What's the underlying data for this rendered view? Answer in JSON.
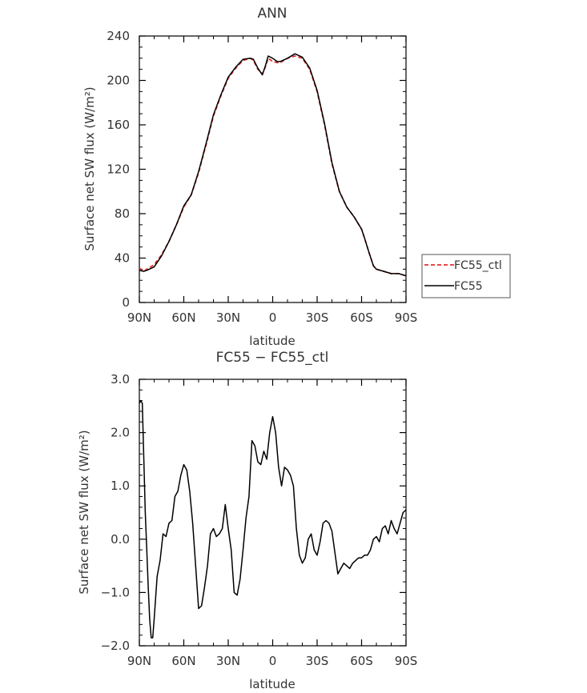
{
  "chart_data": [
    {
      "type": "line",
      "title": "ANN",
      "xlabel": "latitude",
      "ylabel": "Surface net SW flux (W/m²)",
      "x_ticks": [
        "90N",
        "60N",
        "30N",
        "0",
        "30S",
        "60S",
        "90S"
      ],
      "x_range": [
        90,
        -90
      ],
      "y_ticks": [
        "0",
        "40",
        "80",
        "120",
        "160",
        "200",
        "240"
      ],
      "ylim": [
        0,
        240
      ],
      "legend_position": "right",
      "series": [
        {
          "name": "FC55_ctl",
          "color": "#e03030",
          "style": "dashed",
          "x": [
            90,
            87,
            85,
            80,
            75,
            70,
            65,
            60,
            55,
            50,
            45,
            40,
            35,
            30,
            25,
            20,
            15,
            13,
            10,
            7,
            5,
            3,
            0,
            -3,
            -5,
            -10,
            -15,
            -20,
            -25,
            -30,
            -35,
            -40,
            -45,
            -50,
            -55,
            -60,
            -62,
            -65,
            -68,
            -70,
            -75,
            -80,
            -85,
            -90
          ],
          "values": [
            31,
            28,
            30,
            34,
            43,
            55,
            70,
            86,
            97,
            117,
            142,
            168,
            186,
            202,
            211,
            218,
            220,
            218,
            210,
            206,
            212,
            220,
            217,
            216,
            216,
            220,
            222,
            220,
            210,
            190,
            160,
            125,
            100,
            86,
            77,
            66,
            58,
            45,
            33,
            30,
            28,
            26,
            26,
            24
          ]
        },
        {
          "name": "FC55",
          "color": "#000000",
          "style": "solid",
          "x": [
            90,
            87,
            85,
            80,
            75,
            70,
            65,
            60,
            55,
            50,
            45,
            40,
            35,
            30,
            25,
            20,
            15,
            13,
            10,
            7,
            5,
            3,
            0,
            -3,
            -5,
            -10,
            -15,
            -20,
            -25,
            -30,
            -35,
            -40,
            -45,
            -50,
            -55,
            -60,
            -62,
            -65,
            -68,
            -70,
            -75,
            -80,
            -85,
            -90
          ],
          "values": [
            29,
            28,
            29,
            32,
            42,
            55,
            70,
            87,
            97,
            118,
            143,
            169,
            187,
            203,
            212,
            219,
            220,
            219,
            211,
            205,
            213,
            222,
            220,
            217,
            217,
            220,
            224,
            221,
            211,
            191,
            161,
            126,
            100,
            86,
            77,
            66,
            58,
            45,
            33,
            30,
            28,
            26,
            26,
            24
          ]
        }
      ]
    },
    {
      "type": "line",
      "title": "FC55 − FC55_ctl",
      "xlabel": "latitude",
      "ylabel": "Surface net SW flux (W/m²)",
      "x_ticks": [
        "90N",
        "60N",
        "30N",
        "0",
        "30S",
        "60S",
        "90S"
      ],
      "x_range": [
        90,
        -90
      ],
      "y_ticks": [
        "−2.0",
        "−1.0",
        "0.0",
        "1.0",
        "2.0",
        "3.0"
      ],
      "ylim": [
        -2.0,
        3.0
      ],
      "series": [
        {
          "color": "#000000",
          "x": [
            90,
            89,
            88,
            87,
            86,
            85,
            84,
            83,
            82,
            81,
            80,
            78,
            76,
            74,
            72,
            70,
            68,
            66,
            64,
            62,
            60,
            58,
            56,
            54,
            52,
            50,
            48,
            46,
            44,
            42,
            40,
            38,
            36,
            34,
            32,
            30,
            28,
            26,
            24,
            22,
            20,
            18,
            16,
            14,
            12,
            10,
            8,
            6,
            4,
            2,
            0,
            -2,
            -4,
            -6,
            -8,
            -10,
            -12,
            -14,
            -16,
            -18,
            -20,
            -22,
            -24,
            -26,
            -28,
            -30,
            -32,
            -34,
            -36,
            -38,
            -40,
            -42,
            -44,
            -46,
            -48,
            -50,
            -52,
            -54,
            -56,
            -58,
            -60,
            -62,
            -64,
            -66,
            -68,
            -70,
            -72,
            -74,
            -76,
            -78,
            -80,
            -82,
            -84,
            -86,
            -88,
            -90
          ],
          "values": [
            2.55,
            2.6,
            2.55,
            1.5,
            0.5,
            -0.2,
            -0.9,
            -1.5,
            -1.85,
            -1.85,
            -1.5,
            -0.7,
            -0.4,
            0.1,
            0.05,
            0.3,
            0.35,
            0.8,
            0.9,
            1.2,
            1.4,
            1.3,
            0.9,
            0.3,
            -0.5,
            -1.3,
            -1.25,
            -0.9,
            -0.5,
            0.1,
            0.2,
            0.05,
            0.1,
            0.2,
            0.65,
            0.2,
            -0.2,
            -1.0,
            -1.05,
            -0.75,
            -0.2,
            0.4,
            0.8,
            1.85,
            1.75,
            1.45,
            1.4,
            1.65,
            1.5,
            2.0,
            2.3,
            2.0,
            1.35,
            1.0,
            1.35,
            1.3,
            1.2,
            1.0,
            0.2,
            -0.3,
            -0.45,
            -0.35,
            0.0,
            0.1,
            -0.2,
            -0.3,
            -0.05,
            0.3,
            0.35,
            0.3,
            0.15,
            -0.25,
            -0.65,
            -0.55,
            -0.45,
            -0.5,
            -0.55,
            -0.45,
            -0.4,
            -0.35,
            -0.35,
            -0.3,
            -0.3,
            -0.2,
            0.0,
            0.05,
            -0.05,
            0.2,
            0.25,
            0.1,
            0.35,
            0.2,
            0.1,
            0.3,
            0.5,
            0.55
          ]
        }
      ]
    }
  ]
}
